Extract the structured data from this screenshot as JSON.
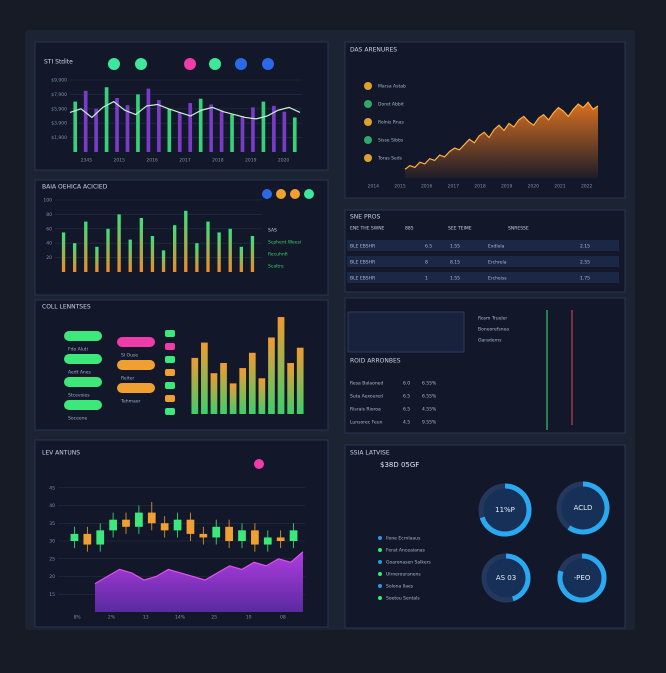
{
  "line_panel": {
    "title": "STI Stdite",
    "ylim": [
      0,
      100
    ],
    "yticks": [
      {
        "value": 20,
        "label": "$1,900"
      },
      {
        "value": 40,
        "label": "$3,900"
      },
      {
        "value": 60,
        "label": "$5,900"
      },
      {
        "value": 80,
        "label": "$7,900"
      },
      {
        "value": 100,
        "label": "$9,900"
      }
    ],
    "values": [
      55,
      60,
      48,
      62,
      70,
      58,
      52,
      64,
      66,
      60,
      55,
      50,
      58,
      62,
      56,
      52,
      48,
      46,
      50,
      58,
      62,
      55
    ],
    "bars": [
      70,
      85,
      60,
      90,
      75,
      65,
      80,
      88,
      72,
      60,
      55,
      68,
      74,
      66,
      58,
      52,
      50,
      62,
      70,
      64,
      56,
      48
    ],
    "categories": [
      "2345",
      "2015",
      "2016",
      "2017",
      "2018",
      "2019",
      "2020"
    ]
  },
  "area_panel": {
    "title": "DAS ARENURES",
    "ylim": [
      0,
      100
    ],
    "values": [
      10,
      14,
      12,
      18,
      16,
      22,
      20,
      26,
      24,
      30,
      34,
      32,
      38,
      44,
      40,
      48,
      52,
      46,
      55,
      60,
      54,
      62,
      58,
      66,
      70,
      64,
      60,
      68,
      72,
      66,
      74,
      80,
      76,
      70,
      78,
      84,
      80,
      86,
      78,
      82
    ],
    "items": [
      "Marsa Astab",
      "Doret Abbit",
      "Rolnis Rnas",
      "Sisse Sibbs",
      "Toras Seds"
    ],
    "categories": [
      "2014",
      "2015",
      "2016",
      "2017",
      "2018",
      "2019",
      "2020",
      "2021",
      "2022"
    ]
  },
  "bar_panel": {
    "title": "BAIA OEHICA ACICIED",
    "ylim": [
      0,
      100
    ],
    "yticks": [
      20,
      40,
      60,
      80,
      100
    ],
    "values": [
      55,
      40,
      70,
      35,
      60,
      80,
      45,
      75,
      50,
      30,
      65,
      85,
      40,
      70,
      55,
      60,
      35,
      50
    ],
    "items": [
      "SAS",
      "Scphent Weesi",
      "Recuhnfi",
      "Scaltre"
    ]
  },
  "pill_panel": {
    "title": "COLL LENNTSES",
    "items": [
      "Fdo Aluti",
      "Sl Ouse",
      "Aedt Anes",
      "Reiter",
      "Stcevoies",
      "Tehmaor",
      "Soceene"
    ],
    "ylim": [
      0,
      100
    ],
    "values": [
      55,
      70,
      40,
      50,
      30,
      45,
      60,
      35,
      75,
      95,
      50,
      65
    ]
  },
  "table_panel": {
    "title": "SNE PROS",
    "header": [
      "ENE THE SWNE",
      "885",
      "SEE TEIME",
      "SNRESSE"
    ],
    "rows": [
      [
        "BLE EBSHR",
        "6.5",
        "1.55",
        "Exdlela",
        "2.15"
      ],
      [
        "BLE EBSHR",
        "8",
        "8.15",
        "Erchrela",
        "2.55"
      ],
      [
        "BLE EBSHR",
        "1",
        "1.55",
        "Ercheiss",
        "1.75"
      ]
    ]
  },
  "list_panel": {
    "title": "ROID ARRONBES",
    "rows": [
      [
        "Resa Balaoned",
        "6.0",
        "6.55%"
      ],
      [
        "Suta Aexoured",
        "6.5",
        "6.55%"
      ],
      [
        "Risrais Rioroa",
        "6.5",
        "4.55%"
      ],
      [
        "Lunsorec Feun",
        "4.5",
        "9.55%"
      ]
    ],
    "side": [
      "Rosm Trueler",
      "Boneorefsnea",
      "Oaraderns"
    ]
  },
  "candle_panel": {
    "title": "LEV ANTUNS",
    "ylim": [
      10,
      50
    ],
    "yticks": [
      15,
      20,
      25,
      30,
      35,
      40,
      45
    ],
    "open": [
      30,
      32,
      29,
      33,
      36,
      34,
      38,
      35,
      33,
      36,
      32,
      31,
      34,
      30,
      33,
      29,
      31,
      30
    ],
    "close": [
      32,
      29,
      33,
      36,
      34,
      38,
      35,
      33,
      36,
      32,
      31,
      34,
      30,
      33,
      29,
      31,
      30,
      33
    ],
    "high": [
      34,
      34,
      35,
      38,
      38,
      40,
      41,
      37,
      38,
      38,
      34,
      36,
      36,
      35,
      35,
      33,
      33,
      35
    ],
    "low": [
      28,
      27,
      27,
      31,
      32,
      32,
      33,
      31,
      31,
      30,
      29,
      29,
      28,
      28,
      27,
      27,
      28,
      28
    ],
    "area": [
      18,
      20,
      22,
      21,
      19,
      20,
      22,
      21,
      20,
      19,
      21,
      23,
      22,
      24,
      23,
      25,
      24,
      27
    ],
    "categories": [
      "8%",
      "2%",
      "13",
      "14%",
      "25",
      "10",
      "08"
    ]
  },
  "gauge_panel": {
    "title": "SSIA LATVISE",
    "headline": "$38D 05GF",
    "gauges": [
      {
        "value": 70,
        "label": "11%P"
      },
      {
        "value": 60,
        "label": "ACLD"
      },
      {
        "value": 45,
        "label": "AS 03"
      },
      {
        "value": 80,
        "label": "-PEO"
      }
    ],
    "rows": [
      "Ilone Ecrnlaaus",
      "Ferat Anceaianas",
      "Goaronasen Salkers",
      "Ulrnerouranens",
      "Solona Ilaes",
      "Soetou Sentals"
    ]
  }
}
